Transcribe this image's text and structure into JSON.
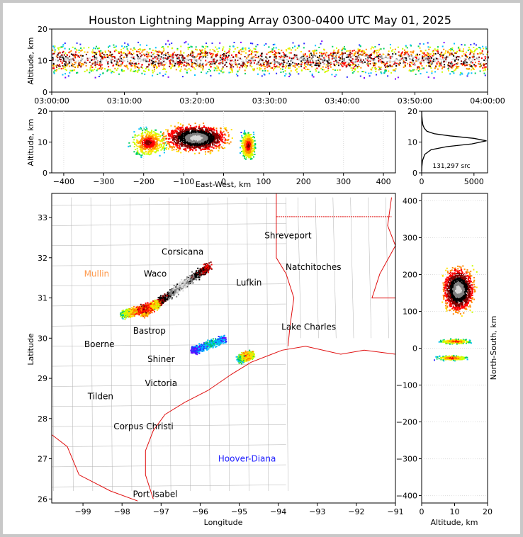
{
  "title": "Houston Lightning Mapping Array 0300-0400 UTC May 01, 2025",
  "colors": {
    "frame_bg": "#c8c8c8",
    "panel_bg": "#ffffff",
    "border_red": "#e01010",
    "county_gray": "#b0b0b0",
    "density_scale": [
      "#7a00ff",
      "#2a2aff",
      "#00c0ff",
      "#00d060",
      "#c8ff00",
      "#ffe000",
      "#ff8800",
      "#ff0000",
      "#800000",
      "#000000",
      "#808080",
      "#d8d8d8"
    ]
  },
  "chart_data": [
    {
      "id": "altitude_time",
      "type": "heatmap",
      "ylabel": "Altitude, km",
      "xlabel": "",
      "xlim": [
        "03:00:00",
        "04:00:00"
      ],
      "ylim": [
        0,
        20
      ],
      "xticks": [
        "03:00:00",
        "03:10:00",
        "03:20:00",
        "03:30:00",
        "03:40:00",
        "03:50:00",
        "04:00:00"
      ],
      "yticks": [
        0,
        10,
        20
      ],
      "band": {
        "core_alt_km": 10.5,
        "min_alt_km": 5,
        "max_alt_km": 16
      }
    },
    {
      "id": "altitude_eastwest",
      "type": "heatmap",
      "xlabel": "East-West, km",
      "ylabel": "Altitude, km",
      "xlim": [
        -430,
        430
      ],
      "ylim": [
        0,
        20
      ],
      "xticks": [
        -400,
        -300,
        -200,
        -100,
        0,
        100,
        200,
        300,
        400
      ],
      "yticks": [
        0,
        10,
        20
      ],
      "blobs": [
        {
          "x": -240,
          "x2": -140,
          "core_alt_km": 10
        },
        {
          "x": -160,
          "x2": 20,
          "core_alt_km": 11.5
        },
        {
          "x": 40,
          "x2": 80,
          "core_alt_km": 9
        }
      ]
    },
    {
      "id": "altitude_histogram",
      "type": "line",
      "xlim": [
        0,
        6300
      ],
      "ylim": [
        0,
        20
      ],
      "xticks": [
        0,
        5000
      ],
      "yticks": [
        0,
        10,
        20
      ],
      "annotation": "131,297 src",
      "x": [
        0,
        20,
        80,
        300,
        900,
        2400,
        4800,
        6200,
        5000,
        2700,
        1200,
        500,
        250,
        120,
        60,
        20,
        0
      ],
      "y": [
        0.5,
        2,
        4,
        6,
        7.5,
        8.5,
        9.4,
        10.4,
        11.2,
        12.0,
        12.7,
        13.5,
        14.5,
        15.5,
        16.8,
        18.5,
        20
      ]
    },
    {
      "id": "plan_map",
      "type": "heatmap",
      "xlabel": "Longitude",
      "ylabel": "Latitude",
      "xlim": [
        -99.8,
        -91.0
      ],
      "ylim": [
        25.9,
        33.6
      ],
      "xticks": [
        -99,
        -98,
        -97,
        -96,
        -95,
        -94,
        -93,
        -92,
        -91
      ],
      "yticks": [
        26,
        27,
        28,
        29,
        30,
        31,
        32,
        33
      ],
      "cities": [
        {
          "name": "Shreveport",
          "lon": -93.75,
          "lat": 32.55,
          "color": "#000000"
        },
        {
          "name": "Corsicana",
          "lon": -96.45,
          "lat": 32.15,
          "color": "#000000"
        },
        {
          "name": "Natchitoches",
          "lon": -93.1,
          "lat": 31.77,
          "color": "#000000"
        },
        {
          "name": "Mullin",
          "lon": -98.65,
          "lat": 31.6,
          "color": "#ff9a4d"
        },
        {
          "name": "Waco",
          "lon": -97.15,
          "lat": 31.6,
          "color": "#000000"
        },
        {
          "name": "Lufkin",
          "lon": -94.75,
          "lat": 31.38,
          "color": "#000000"
        },
        {
          "name": "Lake Charles",
          "lon": -93.22,
          "lat": 30.28,
          "color": "#000000"
        },
        {
          "name": "Bastrop",
          "lon": -97.3,
          "lat": 30.18,
          "color": "#000000"
        },
        {
          "name": "Boerne",
          "lon": -98.58,
          "lat": 29.85,
          "color": "#000000"
        },
        {
          "name": "Shiner",
          "lon": -97.0,
          "lat": 29.48,
          "color": "#000000"
        },
        {
          "name": "Victoria",
          "lon": -97.0,
          "lat": 28.88,
          "color": "#000000"
        },
        {
          "name": "Tilden",
          "lon": -98.55,
          "lat": 28.55,
          "color": "#000000"
        },
        {
          "name": "Corpus Christi",
          "lon": -97.45,
          "lat": 27.8,
          "color": "#000000"
        },
        {
          "name": "Hoover-Diana",
          "lon": -94.8,
          "lat": 27.0,
          "color": "#2020ff"
        },
        {
          "name": "Port Isabel",
          "lon": -97.15,
          "lat": 26.12,
          "color": "#000000"
        }
      ],
      "storms": [
        {
          "lon1": -97.5,
          "lat1": 30.6,
          "lon2": -95.8,
          "lat2": 31.8,
          "intensity": 1.0
        },
        {
          "lon1": -98.0,
          "lat1": 30.6,
          "lon2": -97.1,
          "lat2": 30.85,
          "intensity": 0.7
        },
        {
          "lon1": -96.2,
          "lat1": 29.7,
          "lon2": -95.4,
          "lat2": 30.0,
          "intensity": 0.3
        },
        {
          "lon1": -95.0,
          "lat1": 29.5,
          "lon2": -94.7,
          "lat2": 29.6,
          "intensity": 0.6
        }
      ]
    },
    {
      "id": "northsouth_altitude",
      "type": "heatmap",
      "xlabel": "Altitude, km",
      "ylabel": "North-South, km",
      "xlim": [
        0,
        20
      ],
      "ylim": [
        -420,
        420
      ],
      "xticks": [
        0,
        10,
        20
      ],
      "yticks": [
        -400,
        -300,
        -200,
        -100,
        0,
        100,
        200,
        300,
        400
      ],
      "blobs": [
        {
          "y": 160,
          "h": 100,
          "core_alt_km": 11
        },
        {
          "y": 20,
          "h": 12,
          "core_alt_km": 10
        },
        {
          "y": -25,
          "h": 12,
          "core_alt_km": 9
        }
      ]
    }
  ]
}
